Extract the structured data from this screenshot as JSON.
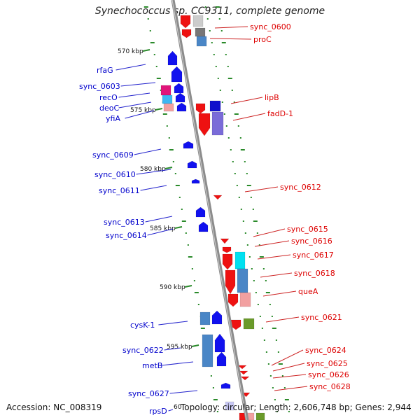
{
  "title": "Synechococcus sp. CC9311, complete genome",
  "footer": {
    "accession": "Accession: NC_008319",
    "topology": "Topology: circular; Length: 2,606,748 bp; Genes: 2,944"
  },
  "colors": {
    "forward_label": "#0000cc",
    "reverse_label": "#dd0000",
    "backbone": "#8c8c8c",
    "tick": "#2a8a2a"
  },
  "kbp_labels": [
    "570 kbp",
    "575 kbp",
    "580 kbp",
    "585 kbp",
    "590 kbp",
    "595 kbp",
    "60"
  ],
  "left_genes": [
    "rfaG",
    "sync_0603",
    "recO",
    "deoC",
    "yfiA",
    "sync_0609",
    "sync_0610",
    "sync_0611",
    "sync_0613",
    "sync_0614",
    "cysK-1",
    "sync_0622",
    "metB",
    "sync_0627",
    "rpsD"
  ],
  "right_genes": [
    "sync_0600",
    "proC",
    "lipB",
    "fadD-1",
    "sync_0612",
    "sync_0615",
    "sync_0616",
    "sync_0617",
    "sync_0618",
    "queA",
    "sync_0621",
    "sync_0624",
    "sync_0625",
    "sync_0626",
    "sync_0628"
  ]
}
